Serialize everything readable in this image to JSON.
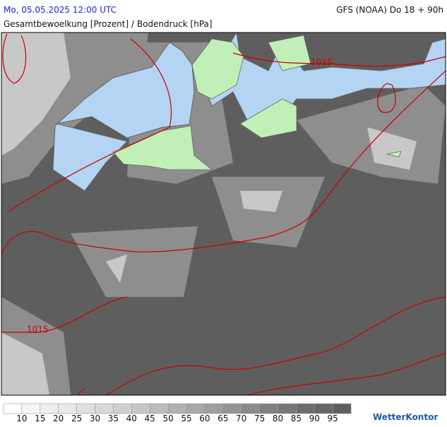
{
  "header": {
    "date": "Mo, 05.05.2025 12:00 UTC",
    "model": "GFS (NOAA) Do 18 + 90h",
    "parameter": "Gesamtbewoelkung [Prozent] / Bodendruck [hPa]"
  },
  "isobars": [
    {
      "label": "1015"
    },
    {
      "label": "1015"
    }
  ],
  "legend": {
    "labels": [
      "10",
      "15",
      "20",
      "25",
      "30",
      "35",
      "40",
      "45",
      "50",
      "55",
      "60",
      "65",
      "70",
      "75",
      "80",
      "85",
      "90",
      "95"
    ],
    "colors": [
      "#ffffff",
      "#f7f7f7",
      "#efefef",
      "#e8e8e8",
      "#e0e0e0",
      "#d8d8d8",
      "#cfcfcf",
      "#c6c6c6",
      "#bcbcbc",
      "#b2b2b2",
      "#a8a8a8",
      "#9e9e9e",
      "#949494",
      "#8a8a8a",
      "#808080",
      "#777777",
      "#6e6e6e",
      "#666666",
      "#5e5e5e"
    ]
  },
  "logo": "WetterKontor"
}
